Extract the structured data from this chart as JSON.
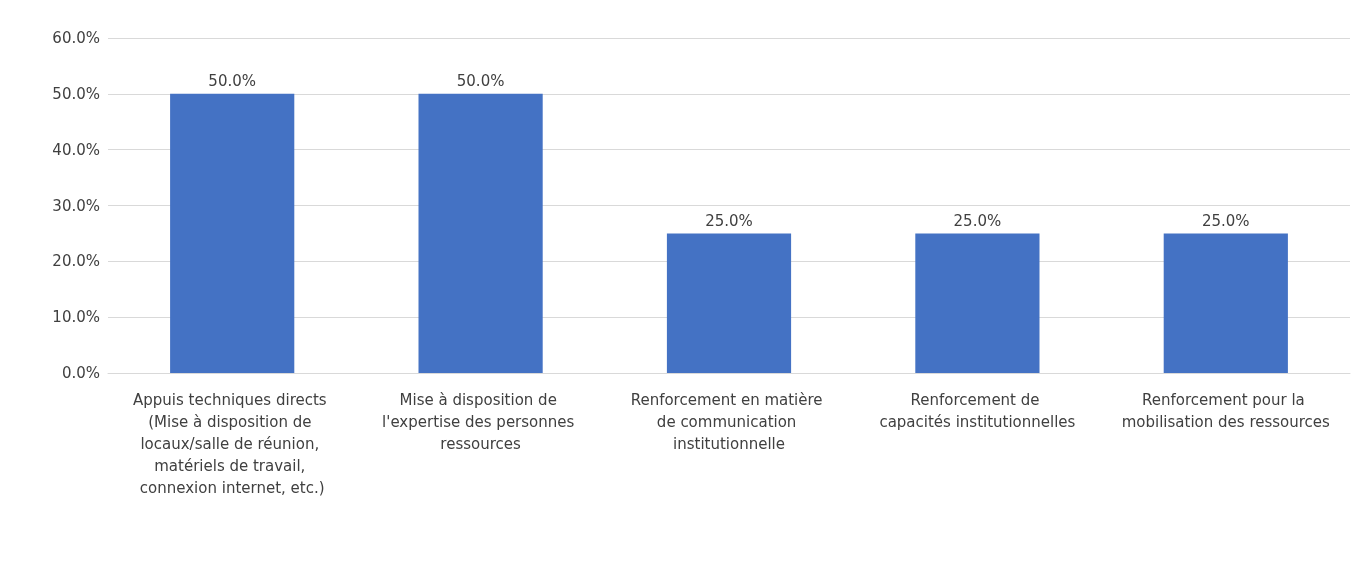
{
  "chart_data": {
    "type": "bar",
    "categories": [
      "Appuis techniques directs (Mise à disposition de locaux/salle de réunion, matériels de travail, connexion internet, etc.)",
      "Mise à disposition de l'expertise des personnes ressources",
      "Renforcement en matière de communication institutionnelle",
      "Renforcement de capacités institutionnelles",
      "Renforcement pour la mobilisation des ressources"
    ],
    "values": [
      50,
      50,
      25,
      25,
      25
    ],
    "value_labels": [
      "50.0%",
      "50.0%",
      "25.0%",
      "25.0%",
      "25.0%"
    ],
    "color": "#4472c4",
    "ylim": [
      0,
      60
    ],
    "yticks": [
      {
        "value": 0,
        "label": "0.0%"
      },
      {
        "value": 10,
        "label": "10.0%"
      },
      {
        "value": 20,
        "label": "20.0%"
      },
      {
        "value": 30,
        "label": "30.0%"
      },
      {
        "value": 40,
        "label": "40.0%"
      },
      {
        "value": 50,
        "label": "50.0%"
      },
      {
        "value": 60,
        "label": "60.0%"
      }
    ],
    "grid": "y"
  }
}
